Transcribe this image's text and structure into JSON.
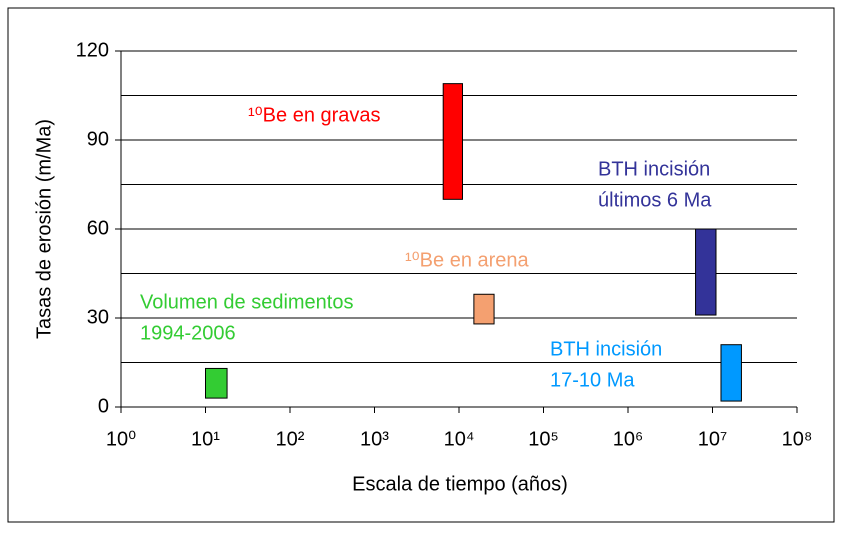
{
  "chart_data": {
    "type": "range-bar",
    "ylabel": "Tasas de erosión (m/Ma)",
    "xlabel": "Escala de tiempo (años)",
    "xscale": "log",
    "xlim": [
      1,
      100000000
    ],
    "xticks": [
      {
        "value": 1,
        "label": "10⁰"
      },
      {
        "value": 10,
        "label": "10¹"
      },
      {
        "value": 100,
        "label": "10²"
      },
      {
        "value": 1000,
        "label": "10³"
      },
      {
        "value": 10000,
        "label": "10⁴"
      },
      {
        "value": 100000,
        "label": "10⁵"
      },
      {
        "value": 1000000,
        "label": "10⁶"
      },
      {
        "value": 10000000,
        "label": "10⁷"
      },
      {
        "value": 100000000,
        "label": "10⁸"
      }
    ],
    "ylim": [
      0,
      120
    ],
    "yticks": [
      0,
      30,
      60,
      90,
      120
    ],
    "ygrid": [
      15,
      30,
      45,
      60,
      75,
      90,
      105,
      120
    ],
    "series": [
      {
        "labels": [
          "Volumen de sedimentos",
          "1994-2006"
        ],
        "color": "#33cc33",
        "x": [
          10,
          18
        ],
        "values": [
          3,
          13
        ]
      },
      {
        "labels": [
          "¹⁰Be en gravas"
        ],
        "color": "#ff0000",
        "x": [
          6500,
          11000
        ],
        "values": [
          70,
          109
        ]
      },
      {
        "labels": [
          "¹⁰Be en arena"
        ],
        "color": "#f4a070",
        "x": [
          15000,
          26000
        ],
        "values": [
          28,
          38
        ]
      },
      {
        "labels": [
          "BTH incisión",
          "últimos 6 Ma"
        ],
        "color": "#333399",
        "x": [
          6300000,
          11000000
        ],
        "values": [
          31,
          60
        ]
      },
      {
        "labels": [
          "BTH incisión",
          "17-10 Ma"
        ],
        "color": "#0099ff",
        "x": [
          12600000,
          22000000
        ],
        "values": [
          2,
          21
        ]
      }
    ]
  }
}
